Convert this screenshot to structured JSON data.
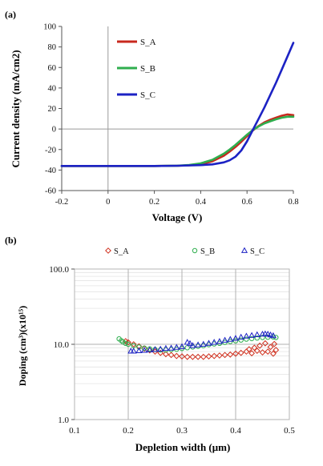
{
  "chart_data": [
    {
      "panel_label": "(a)",
      "type": "line",
      "xlabel": "Voltage (V)",
      "ylabel": "Current density (mA/cm2)",
      "xlim": [
        -0.2,
        0.8
      ],
      "ylim": [
        -60,
        100
      ],
      "x_ticks": [
        "-0.2",
        "0",
        "0.2",
        "0.4",
        "0.6",
        "0.8"
      ],
      "y_ticks": [
        "-60",
        "-40",
        "-20",
        "0",
        "20",
        "40",
        "60",
        "80",
        "100"
      ],
      "grid": false,
      "legend": "upper-left inside plot",
      "series": [
        {
          "name": "S_A",
          "color": "#c8281e",
          "points": [
            [
              -0.2,
              -36
            ],
            [
              -0.1,
              -36
            ],
            [
              0,
              -36
            ],
            [
              0.1,
              -36
            ],
            [
              0.2,
              -36
            ],
            [
              0.3,
              -35.8
            ],
            [
              0.35,
              -35.3
            ],
            [
              0.4,
              -34.3
            ],
            [
              0.45,
              -31.5
            ],
            [
              0.5,
              -26
            ],
            [
              0.525,
              -22
            ],
            [
              0.55,
              -17.5
            ],
            [
              0.575,
              -12.5
            ],
            [
              0.6,
              -7
            ],
            [
              0.625,
              -1.5
            ],
            [
              0.65,
              3
            ],
            [
              0.675,
              6.5
            ],
            [
              0.7,
              9
            ],
            [
              0.725,
              11
            ],
            [
              0.75,
              13
            ],
            [
              0.775,
              14.2
            ],
            [
              0.8,
              13.5
            ]
          ]
        },
        {
          "name": "S_B",
          "color": "#2fae4e",
          "points": [
            [
              -0.2,
              -36
            ],
            [
              -0.1,
              -36
            ],
            [
              0,
              -36
            ],
            [
              0.1,
              -36
            ],
            [
              0.2,
              -36
            ],
            [
              0.3,
              -35.7
            ],
            [
              0.35,
              -35
            ],
            [
              0.4,
              -33.5
            ],
            [
              0.45,
              -30
            ],
            [
              0.5,
              -24
            ],
            [
              0.525,
              -20
            ],
            [
              0.55,
              -15.5
            ],
            [
              0.575,
              -10.5
            ],
            [
              0.6,
              -5.5
            ],
            [
              0.625,
              -1
            ],
            [
              0.65,
              2.5
            ],
            [
              0.675,
              5.5
            ],
            [
              0.7,
              7.5
            ],
            [
              0.725,
              9.5
            ],
            [
              0.75,
              11
            ],
            [
              0.775,
              12
            ],
            [
              0.8,
              12
            ]
          ]
        },
        {
          "name": "S_C",
          "color": "#1c22c4",
          "points": [
            [
              -0.2,
              -36
            ],
            [
              -0.1,
              -36
            ],
            [
              0,
              -36
            ],
            [
              0.1,
              -36
            ],
            [
              0.2,
              -36
            ],
            [
              0.3,
              -35.8
            ],
            [
              0.4,
              -35.2
            ],
            [
              0.45,
              -34.5
            ],
            [
              0.5,
              -32.5
            ],
            [
              0.525,
              -30.5
            ],
            [
              0.55,
              -27
            ],
            [
              0.575,
              -21
            ],
            [
              0.6,
              -12
            ],
            [
              0.625,
              -1
            ],
            [
              0.65,
              10
            ],
            [
              0.675,
              21
            ],
            [
              0.7,
              33
            ],
            [
              0.725,
              45
            ],
            [
              0.75,
              58
            ],
            [
              0.775,
              71
            ],
            [
              0.8,
              84
            ]
          ]
        }
      ]
    },
    {
      "panel_label": "(b)",
      "type": "scatter",
      "xlabel": "Depletion width (μm)",
      "ylabel": "Doping (cm³)(x10¹⁵)",
      "xlim": [
        0.1,
        0.5
      ],
      "ylim": [
        1,
        100
      ],
      "y_scale": "log",
      "x_ticks": [
        "0.1",
        "0.2",
        "0.3",
        "0.4",
        "0.5"
      ],
      "y_ticks": [
        "1.0",
        "10.0",
        "100.0"
      ],
      "grid": true,
      "legend": "top, above plot",
      "series": [
        {
          "name": "S_A",
          "color": "#d0301e",
          "marker": "diamond",
          "points": [
            [
              0.195,
              11.0
            ],
            [
              0.2,
              10.6
            ],
            [
              0.21,
              10.0
            ],
            [
              0.22,
              9.4
            ],
            [
              0.23,
              8.8
            ],
            [
              0.24,
              8.3
            ],
            [
              0.25,
              8.0
            ],
            [
              0.26,
              7.7
            ],
            [
              0.27,
              7.4
            ],
            [
              0.28,
              7.2
            ],
            [
              0.29,
              7.0
            ],
            [
              0.3,
              6.9
            ],
            [
              0.31,
              6.8
            ],
            [
              0.32,
              6.8
            ],
            [
              0.33,
              6.8
            ],
            [
              0.34,
              6.8
            ],
            [
              0.35,
              6.9
            ],
            [
              0.36,
              7.0
            ],
            [
              0.37,
              7.1
            ],
            [
              0.38,
              7.2
            ],
            [
              0.39,
              7.3
            ],
            [
              0.4,
              7.5
            ],
            [
              0.41,
              7.7
            ],
            [
              0.42,
              8.0
            ],
            [
              0.425,
              8.6
            ],
            [
              0.43,
              7.6
            ],
            [
              0.435,
              9.0
            ],
            [
              0.44,
              8.2
            ],
            [
              0.445,
              9.6
            ],
            [
              0.45,
              7.8
            ],
            [
              0.455,
              10.3
            ],
            [
              0.46,
              8.0
            ],
            [
              0.465,
              9.2
            ],
            [
              0.47,
              7.5
            ],
            [
              0.472,
              10.1
            ],
            [
              0.475,
              8.4
            ]
          ]
        },
        {
          "name": "S_B",
          "color": "#2fae4e",
          "marker": "circle",
          "points": [
            [
              0.183,
              11.8
            ],
            [
              0.187,
              11.2
            ],
            [
              0.19,
              10.8
            ],
            [
              0.195,
              10.3
            ],
            [
              0.2,
              10.0
            ],
            [
              0.21,
              9.6
            ],
            [
              0.22,
              9.2
            ],
            [
              0.23,
              8.9
            ],
            [
              0.24,
              8.7
            ],
            [
              0.25,
              8.5
            ],
            [
              0.26,
              8.4
            ],
            [
              0.27,
              8.4
            ],
            [
              0.28,
              8.5
            ],
            [
              0.29,
              8.6
            ],
            [
              0.3,
              8.8
            ],
            [
              0.31,
              9.0
            ],
            [
              0.32,
              9.2
            ],
            [
              0.33,
              9.4
            ],
            [
              0.34,
              9.6
            ],
            [
              0.35,
              9.9
            ],
            [
              0.36,
              10.1
            ],
            [
              0.37,
              10.3
            ],
            [
              0.38,
              10.6
            ],
            [
              0.39,
              10.9
            ],
            [
              0.4,
              11.1
            ],
            [
              0.41,
              11.4
            ],
            [
              0.42,
              11.7
            ],
            [
              0.43,
              11.9
            ],
            [
              0.44,
              12.1
            ],
            [
              0.45,
              12.3
            ],
            [
              0.46,
              12.4
            ],
            [
              0.47,
              12.5
            ],
            [
              0.475,
              12.3
            ]
          ]
        },
        {
          "name": "S_C",
          "color": "#1c22c4",
          "marker": "triangle",
          "points": [
            [
              0.205,
              8.1
            ],
            [
              0.21,
              8.1
            ],
            [
              0.22,
              8.2
            ],
            [
              0.23,
              8.3
            ],
            [
              0.24,
              8.4
            ],
            [
              0.25,
              8.5
            ],
            [
              0.26,
              8.6
            ],
            [
              0.27,
              8.8
            ],
            [
              0.28,
              8.9
            ],
            [
              0.29,
              9.1
            ],
            [
              0.3,
              9.3
            ],
            [
              0.31,
              10.6
            ],
            [
              0.315,
              10.2
            ],
            [
              0.32,
              9.6
            ],
            [
              0.33,
              9.8
            ],
            [
              0.34,
              10.0
            ],
            [
              0.35,
              10.3
            ],
            [
              0.36,
              10.6
            ],
            [
              0.37,
              10.9
            ],
            [
              0.38,
              11.3
            ],
            [
              0.39,
              11.6
            ],
            [
              0.4,
              12.0
            ],
            [
              0.41,
              12.4
            ],
            [
              0.42,
              12.8
            ],
            [
              0.43,
              13.1
            ],
            [
              0.44,
              13.4
            ],
            [
              0.45,
              13.6
            ],
            [
              0.455,
              13.7
            ],
            [
              0.46,
              13.6
            ],
            [
              0.465,
              13.3
            ],
            [
              0.47,
              13.0
            ]
          ]
        }
      ]
    }
  ]
}
